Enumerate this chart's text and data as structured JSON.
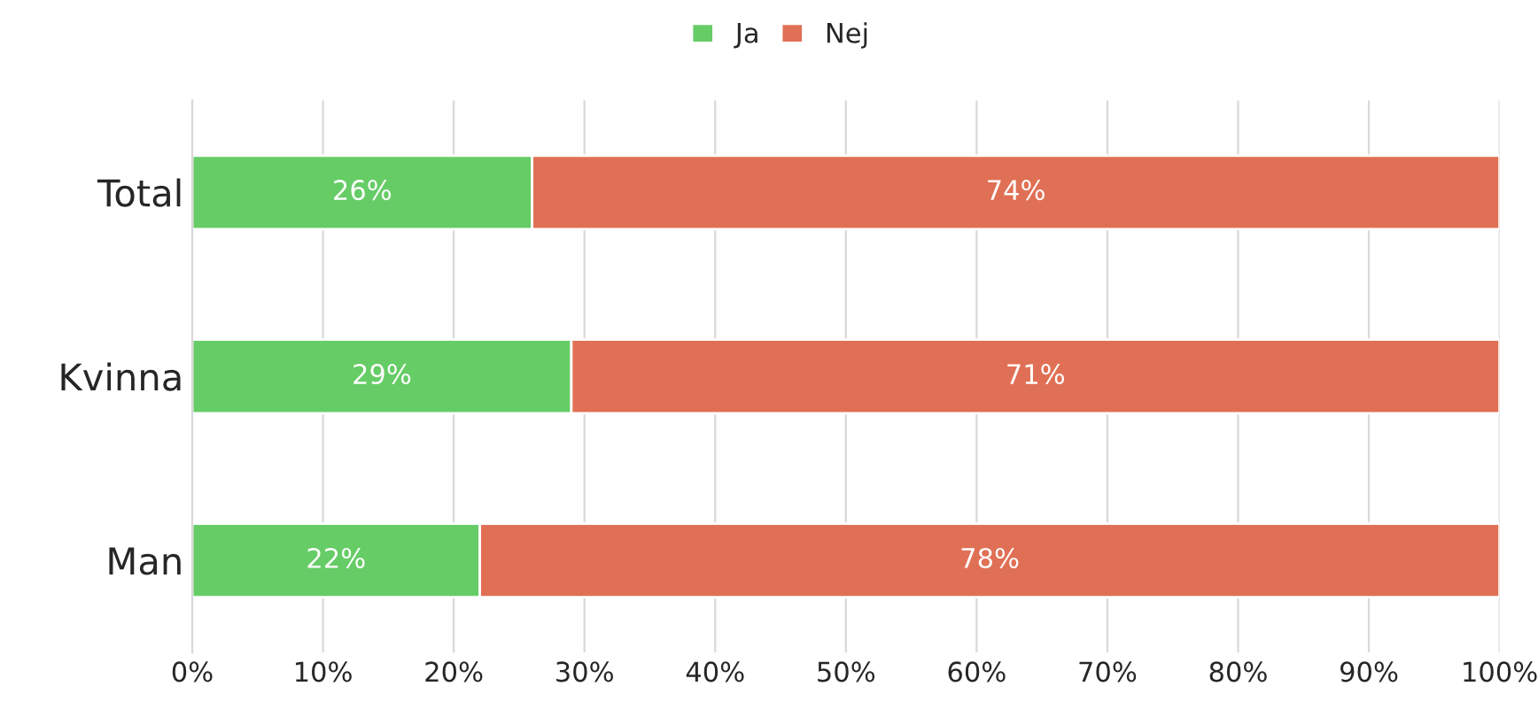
{
  "chart_data": {
    "type": "bar",
    "orientation": "horizontal",
    "stacked": true,
    "categories": [
      "Total",
      "Kvinna",
      "Man"
    ],
    "series": [
      {
        "name": "Ja",
        "color": "#66cc66",
        "values": [
          26,
          29,
          22
        ]
      },
      {
        "name": "Nej",
        "color": "#e07055",
        "values": [
          74,
          71,
          78
        ]
      }
    ],
    "xlim": [
      0,
      100
    ],
    "xticks": [
      {
        "value": 0,
        "label": "0%"
      },
      {
        "value": 10,
        "label": "10%"
      },
      {
        "value": 20,
        "label": "20%"
      },
      {
        "value": 30,
        "label": "30%"
      },
      {
        "value": 40,
        "label": "40%"
      },
      {
        "value": 50,
        "label": "50%"
      },
      {
        "value": 60,
        "label": "60%"
      },
      {
        "value": 70,
        "label": "70%"
      },
      {
        "value": 80,
        "label": "80%"
      },
      {
        "value": 90,
        "label": "90%"
      },
      {
        "value": 100,
        "label": "100%"
      }
    ],
    "value_labels": [
      [
        "26%",
        "29%",
        "22%"
      ],
      [
        "74%",
        "71%",
        "78%"
      ]
    ],
    "grid": "x",
    "legend": "top"
  }
}
